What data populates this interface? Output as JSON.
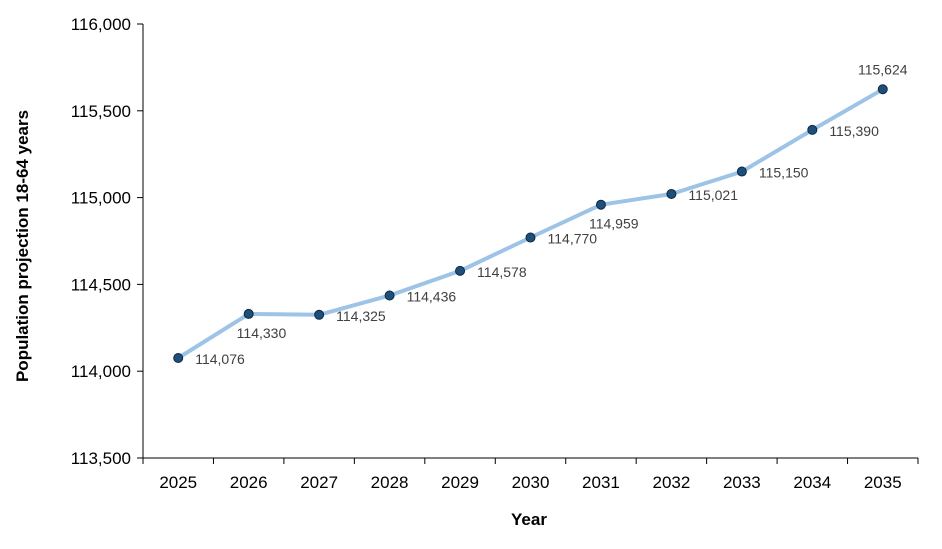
{
  "chart_data": {
    "type": "line",
    "xlabel": "Year",
    "ylabel": "Population projection 18-64 years",
    "ylim": [
      113500,
      116000
    ],
    "yticks": [
      "113,500",
      "114,000",
      "114,500",
      "115,000",
      "115,500",
      "116,000"
    ],
    "yticks_values": [
      113500,
      114000,
      114500,
      115000,
      115500,
      116000
    ],
    "grid": false,
    "series": [
      {
        "x": [
          "2025",
          "2026",
          "2027",
          "2028",
          "2029",
          "2030",
          "2031",
          "2032",
          "2033",
          "2034",
          "2035"
        ],
        "values": [
          114076,
          114330,
          114325,
          114436,
          114578,
          114770,
          114959,
          115021,
          115150,
          115390,
          115624
        ],
        "labels": [
          "114,076",
          "114,330",
          "114,325",
          "114,436",
          "114,578",
          "114,770",
          "114,959",
          "115,021",
          "115,150",
          "115,390",
          "115,624"
        ]
      }
    ],
    "colors": {
      "line": "#9dc3e6",
      "marker": "#1f4e79",
      "axis": "#000000",
      "label": "#404040"
    }
  }
}
